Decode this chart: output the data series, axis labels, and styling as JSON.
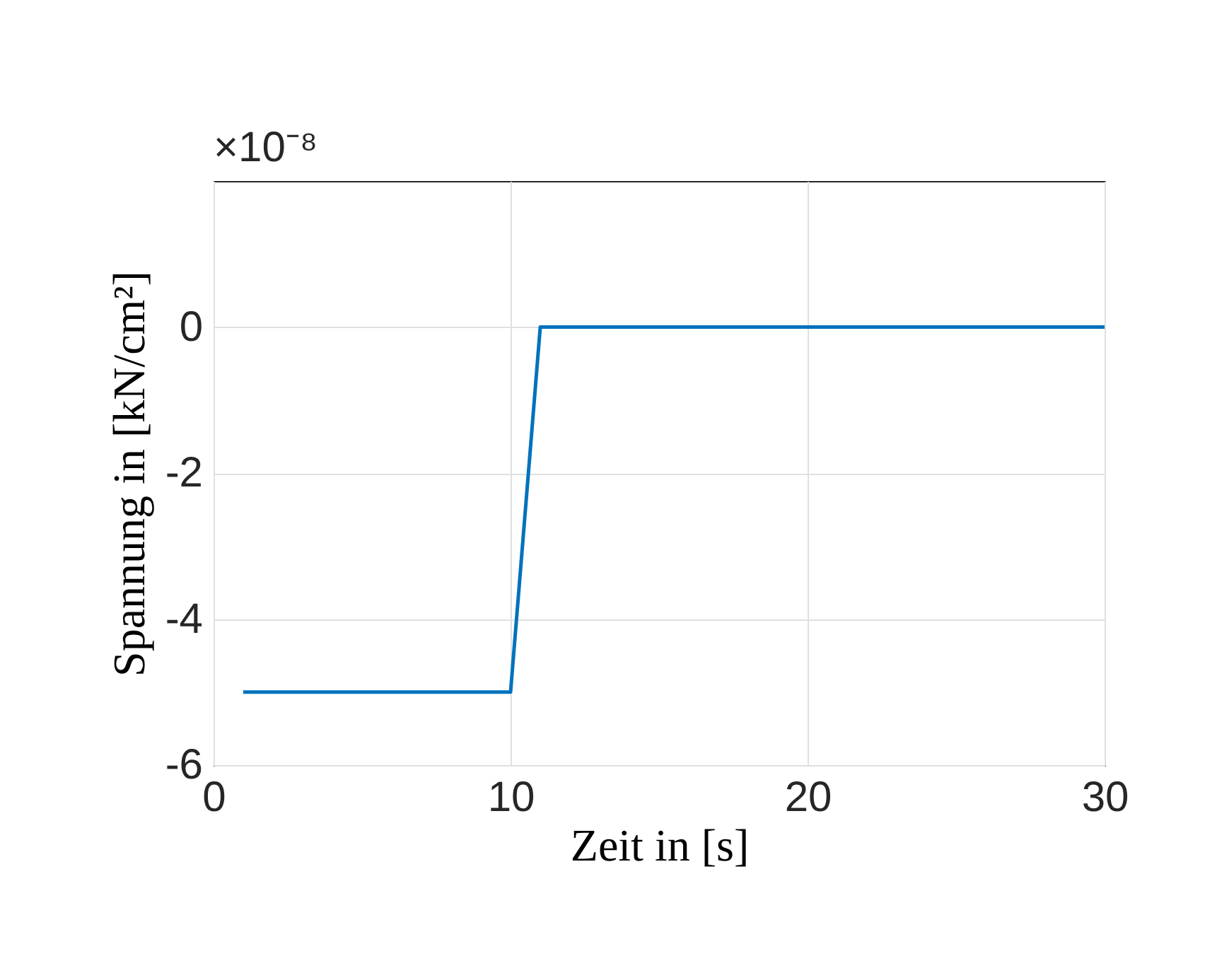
{
  "chart_data": {
    "type": "line",
    "xlabel": "Zeit in [s]",
    "ylabel": "Spannung in [kN/cm²]",
    "annotations": [
      "×10⁻⁸"
    ],
    "series": [
      {
        "color": "#0072bd",
        "x": [
          1,
          10,
          11,
          30
        ],
        "values": [
          -5,
          -5,
          0,
          0
        ]
      }
    ],
    "xlim": [
      0,
      30
    ],
    "xticks": [
      0,
      10,
      20,
      30
    ],
    "ylim": [
      -6,
      2
    ],
    "yticks": [
      -6,
      -4,
      -2,
      0
    ],
    "grid": true,
    "legend": false,
    "marker": "none",
    "line_style": "solid"
  }
}
